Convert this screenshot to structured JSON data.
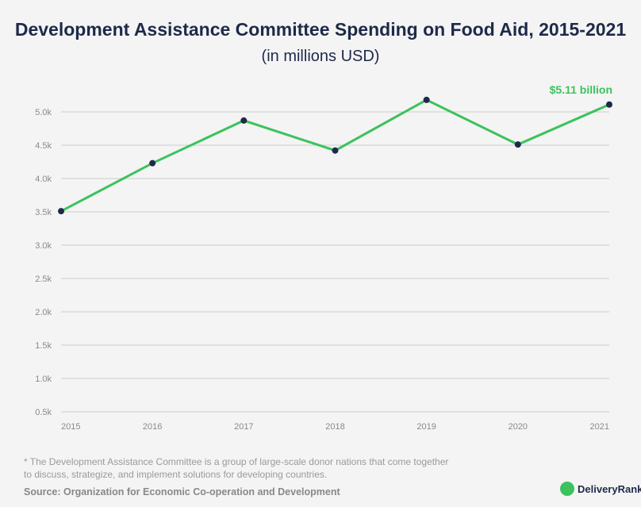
{
  "chart_data": {
    "type": "line",
    "title": "Development Assistance Committee Spending on Food Aid, 2015-2021",
    "subtitle": "(in millions USD)",
    "categories": [
      "2015",
      "2016",
      "2017",
      "2018",
      "2019",
      "2020",
      "2021"
    ],
    "series": [
      {
        "values": [
          3510,
          4230,
          4870,
          4420,
          5180,
          4510,
          5110
        ]
      }
    ],
    "yticks": [
      "0.5k",
      "1.0k",
      "1.5k",
      "2.0k",
      "2.5k",
      "3.0k",
      "3.5k",
      "4.0k",
      "4.5k",
      "5.0k"
    ],
    "ytick_values": [
      500,
      1000,
      1500,
      2000,
      2500,
      3000,
      3500,
      4000,
      4500,
      5000
    ],
    "ylim": [
      500,
      5000
    ],
    "grid": true,
    "annotation": "$5.11 billion",
    "colors": {
      "line": "#3cc25e",
      "marker": "#1e2a4a",
      "grid": "#cccccc"
    }
  },
  "footnote": "* The Development Assistance Committee is a group of large-scale donor nations that come together to discuss, strategize, and implement solutions for developing countries.",
  "source": "Source: Organization for Economic Co-operation and Development",
  "logo_text": "DeliveryRank"
}
